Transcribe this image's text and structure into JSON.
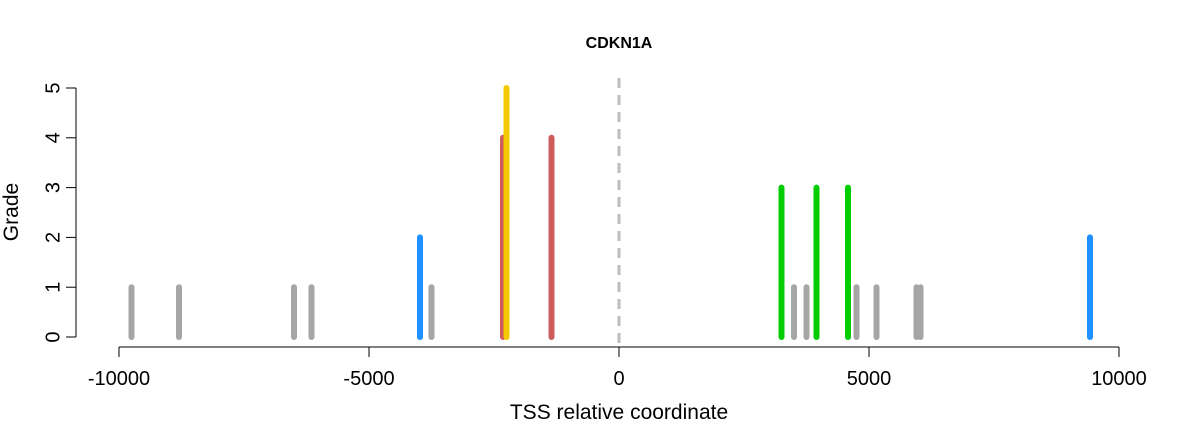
{
  "chart_data": {
    "type": "bar",
    "title": "CDKN1A",
    "xlabel": "TSS relative coordinate",
    "ylabel": "Grade",
    "xlim": [
      -10000,
      10000
    ],
    "ylim": [
      0,
      5
    ],
    "x_ticks": [
      -10000,
      -5000,
      0,
      5000,
      10000
    ],
    "x_tick_labels": [
      "-10000",
      "-5000",
      "0",
      "5000",
      "10000"
    ],
    "y_ticks": [
      0,
      1,
      2,
      3,
      4,
      5
    ],
    "y_tick_labels": [
      "0",
      "1",
      "2",
      "3",
      "4",
      "5"
    ],
    "reference_line": {
      "x": 0,
      "style": "dashed",
      "color": "#bebebe"
    },
    "grid": false,
    "colors": {
      "grade_1": "#a6a6a6",
      "grade_2": "#1e90ff",
      "grade_3": "#00cd00",
      "grade_4": "#cd5c5c",
      "grade_5": "#f5c800"
    },
    "points": [
      {
        "x": -9750,
        "y": 1,
        "color": "#a6a6a6"
      },
      {
        "x": -8800,
        "y": 1,
        "color": "#a6a6a6"
      },
      {
        "x": -6500,
        "y": 1,
        "color": "#a6a6a6"
      },
      {
        "x": -6150,
        "y": 1,
        "color": "#a6a6a6"
      },
      {
        "x": -3980,
        "y": 2,
        "color": "#1e90ff"
      },
      {
        "x": -3750,
        "y": 1,
        "color": "#a6a6a6"
      },
      {
        "x": -2320,
        "y": 4,
        "color": "#cd5c5c"
      },
      {
        "x": -2250,
        "y": 5,
        "color": "#f5c800"
      },
      {
        "x": -1350,
        "y": 4,
        "color": "#cd5c5c"
      },
      {
        "x": 3250,
        "y": 3,
        "color": "#00cd00"
      },
      {
        "x": 3500,
        "y": 1,
        "color": "#a6a6a6"
      },
      {
        "x": 3750,
        "y": 1,
        "color": "#a6a6a6"
      },
      {
        "x": 3950,
        "y": 3,
        "color": "#00cd00"
      },
      {
        "x": 4580,
        "y": 3,
        "color": "#00cd00"
      },
      {
        "x": 4750,
        "y": 1,
        "color": "#a6a6a6"
      },
      {
        "x": 5150,
        "y": 1,
        "color": "#a6a6a6"
      },
      {
        "x": 5950,
        "y": 1,
        "color": "#a6a6a6"
      },
      {
        "x": 6030,
        "y": 1,
        "color": "#a6a6a6"
      },
      {
        "x": 9420,
        "y": 2,
        "color": "#1e90ff"
      }
    ]
  }
}
